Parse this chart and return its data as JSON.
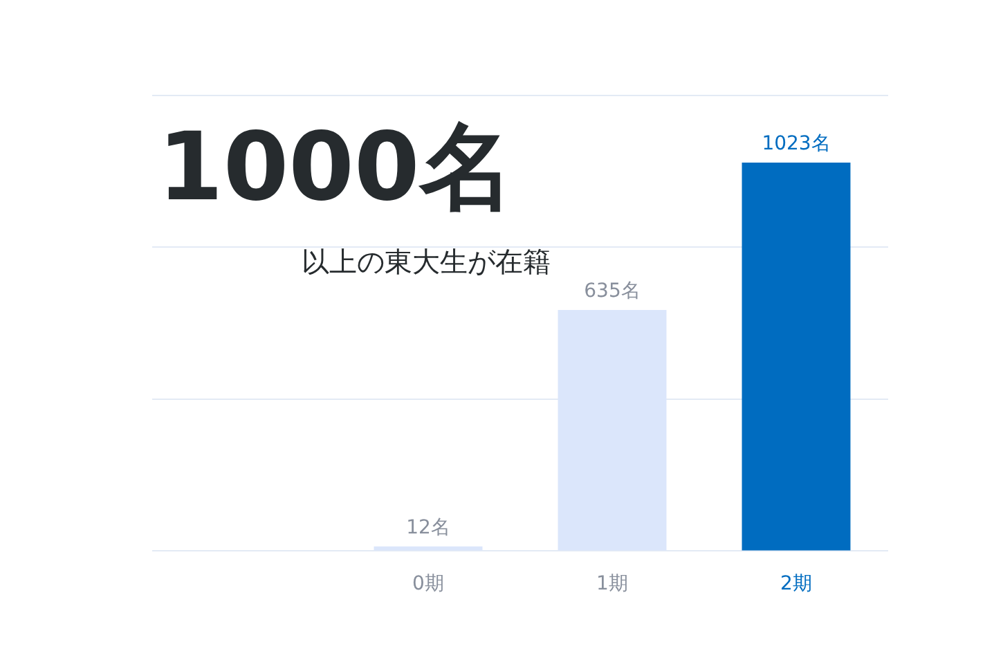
{
  "chart_data": {
    "type": "bar",
    "title": "1000名",
    "subtitle": "以上の東大生が在籍",
    "categories": [
      null,
      "0期",
      "1期",
      "2期"
    ],
    "values": [
      null,
      12,
      635,
      1023
    ],
    "value_labels": [
      null,
      "12名",
      "635名",
      "1023名"
    ],
    "colors": [
      "#dbe6fb",
      "#dbe6fb",
      "#dbe6fb",
      "#006cc0"
    ],
    "ylim": [
      0,
      1200
    ],
    "yticks": [
      {
        "value": 0,
        "label": null
      },
      {
        "value": 400,
        "label": null
      },
      {
        "value": 800,
        "label": null
      },
      {
        "value": 1200,
        "label": null
      }
    ],
    "tick_labels": "x",
    "grid": "y",
    "legend": false
  }
}
